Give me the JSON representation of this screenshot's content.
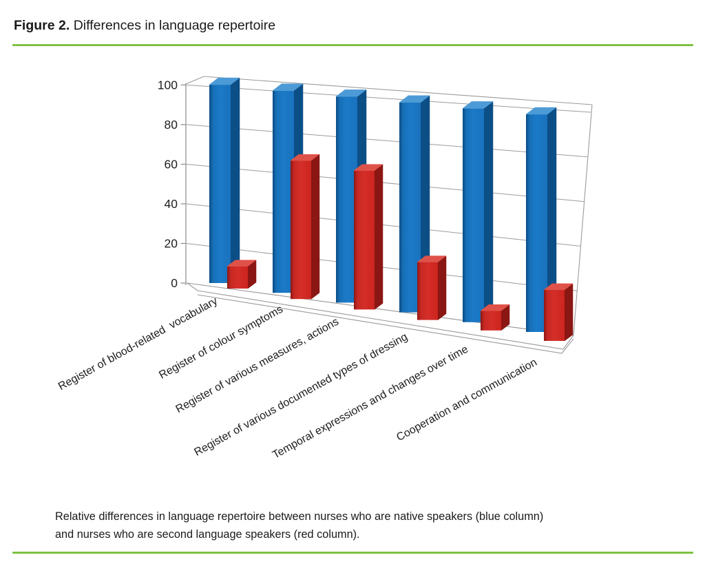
{
  "figure": {
    "label": "Figure 2.",
    "title": "Differences in language repertoire"
  },
  "divider_color": "#7dc242",
  "caption": {
    "line1": "Relative differences in language repertoire between nurses who are native speakers (blue column)",
    "line2": "and nurses who are second language speakers (red column)."
  },
  "chart_data": {
    "type": "bar",
    "style": "3d-clustered-columns",
    "title": "",
    "xlabel": "",
    "ylabel": "",
    "ylim": [
      0,
      100
    ],
    "yticks": [
      0,
      20,
      40,
      60,
      80,
      100
    ],
    "grid": true,
    "legend": "none",
    "categories": [
      "Register of blood-related  vocabulary",
      "Register of colour symptoms",
      "Register of various measures, actions",
      "Register of various documented types of dressing",
      "Temporal expressions and changes over time",
      "Cooperation and communication"
    ],
    "series": [
      {
        "name": "Nurses who are native speakers (blue column)",
        "color": "#1a79c6",
        "values": [
          100,
          100,
          100,
          100,
          100,
          100
        ]
      },
      {
        "name": "Nurses who are second language speakers (red column)",
        "color": "#d32a24",
        "values": [
          11,
          67,
          66,
          27,
          9,
          23
        ]
      }
    ]
  }
}
